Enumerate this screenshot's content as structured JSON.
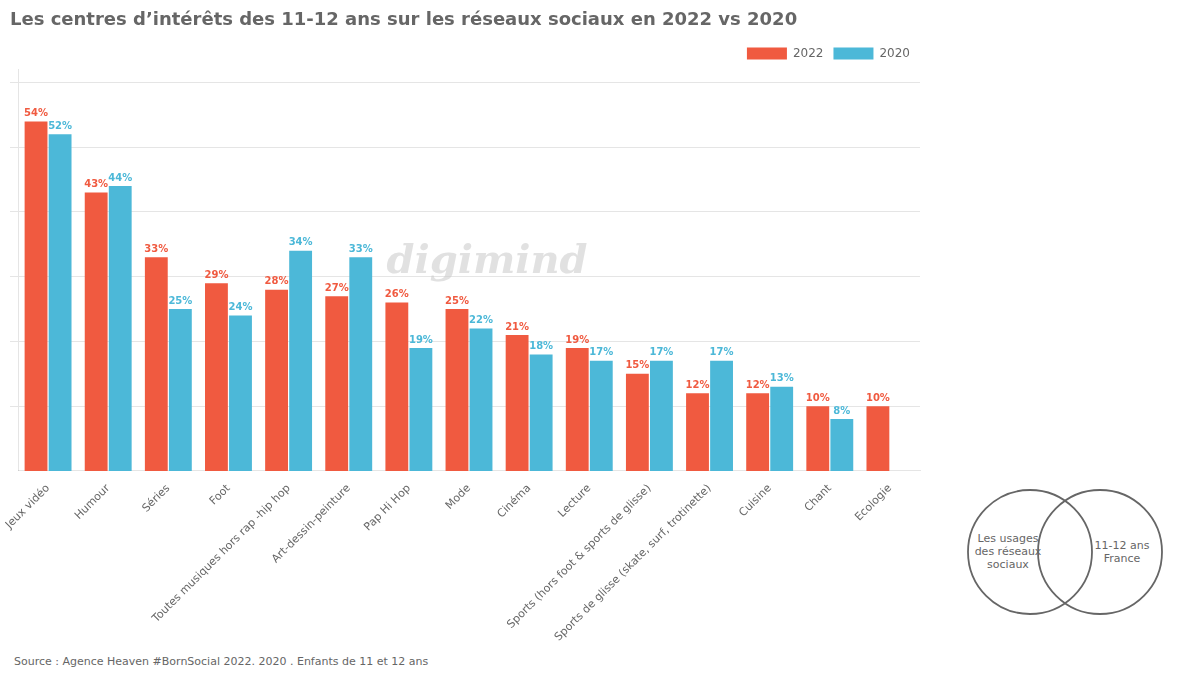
{
  "chart_data": {
    "type": "bar",
    "title": "Les centres d’intérêts des 11-12 ans sur les réseaux sociaux en 2022 vs 2020",
    "categories": [
      "Jeux vidéo",
      "Humour",
      "Séries",
      "Foot",
      "Toutes musiques hors rap -hip hop",
      "Art-dessin-peinture",
      "Pap Hi Hop",
      "Mode",
      "Cinéma",
      "Lecture",
      "Sports (hors foot & sports de glisse)",
      "Sports de glisse (skate, surf, trotinette)",
      "Cuisine",
      "Chant",
      "Ecologie"
    ],
    "series": [
      {
        "name": "2022",
        "color": "#F05A40",
        "values": [
          54,
          43,
          33,
          29,
          28,
          27,
          26,
          25,
          21,
          19,
          15,
          12,
          12,
          10,
          10
        ],
        "value_labels": [
          "54%",
          "43%",
          "33%",
          "29%",
          "28%",
          "27%",
          "26%",
          "25%",
          "21%",
          "19%",
          "15%",
          "12%",
          "12%",
          "10%",
          "10%"
        ]
      },
      {
        "name": "2020",
        "color": "#4CB8D8",
        "values": [
          52,
          44,
          25,
          24,
          34,
          33,
          19,
          22,
          18,
          17,
          17,
          17,
          13,
          8,
          null
        ],
        "value_labels": [
          "52%",
          "44%",
          "25%",
          "24%",
          "34%",
          "33%",
          "19%",
          "22%",
          "18%",
          "17%",
          "17%",
          "17%",
          "13%",
          "8%",
          null
        ]
      }
    ],
    "ylim": [
      0,
      62
    ],
    "yticks": [
      10,
      20,
      30,
      40,
      50,
      60
    ],
    "grid": true,
    "tick_labels": "x",
    "legend": "top-right",
    "data_labels": true,
    "annotations": [
      "digimind",
      "Source : Agence Heaven  #BornSocial 2022. 2020 .   Enfants de 11 et 12 ans",
      "Les usages\ndes réseaux\nsociaux",
      "11-12 ans\nFrance"
    ]
  }
}
